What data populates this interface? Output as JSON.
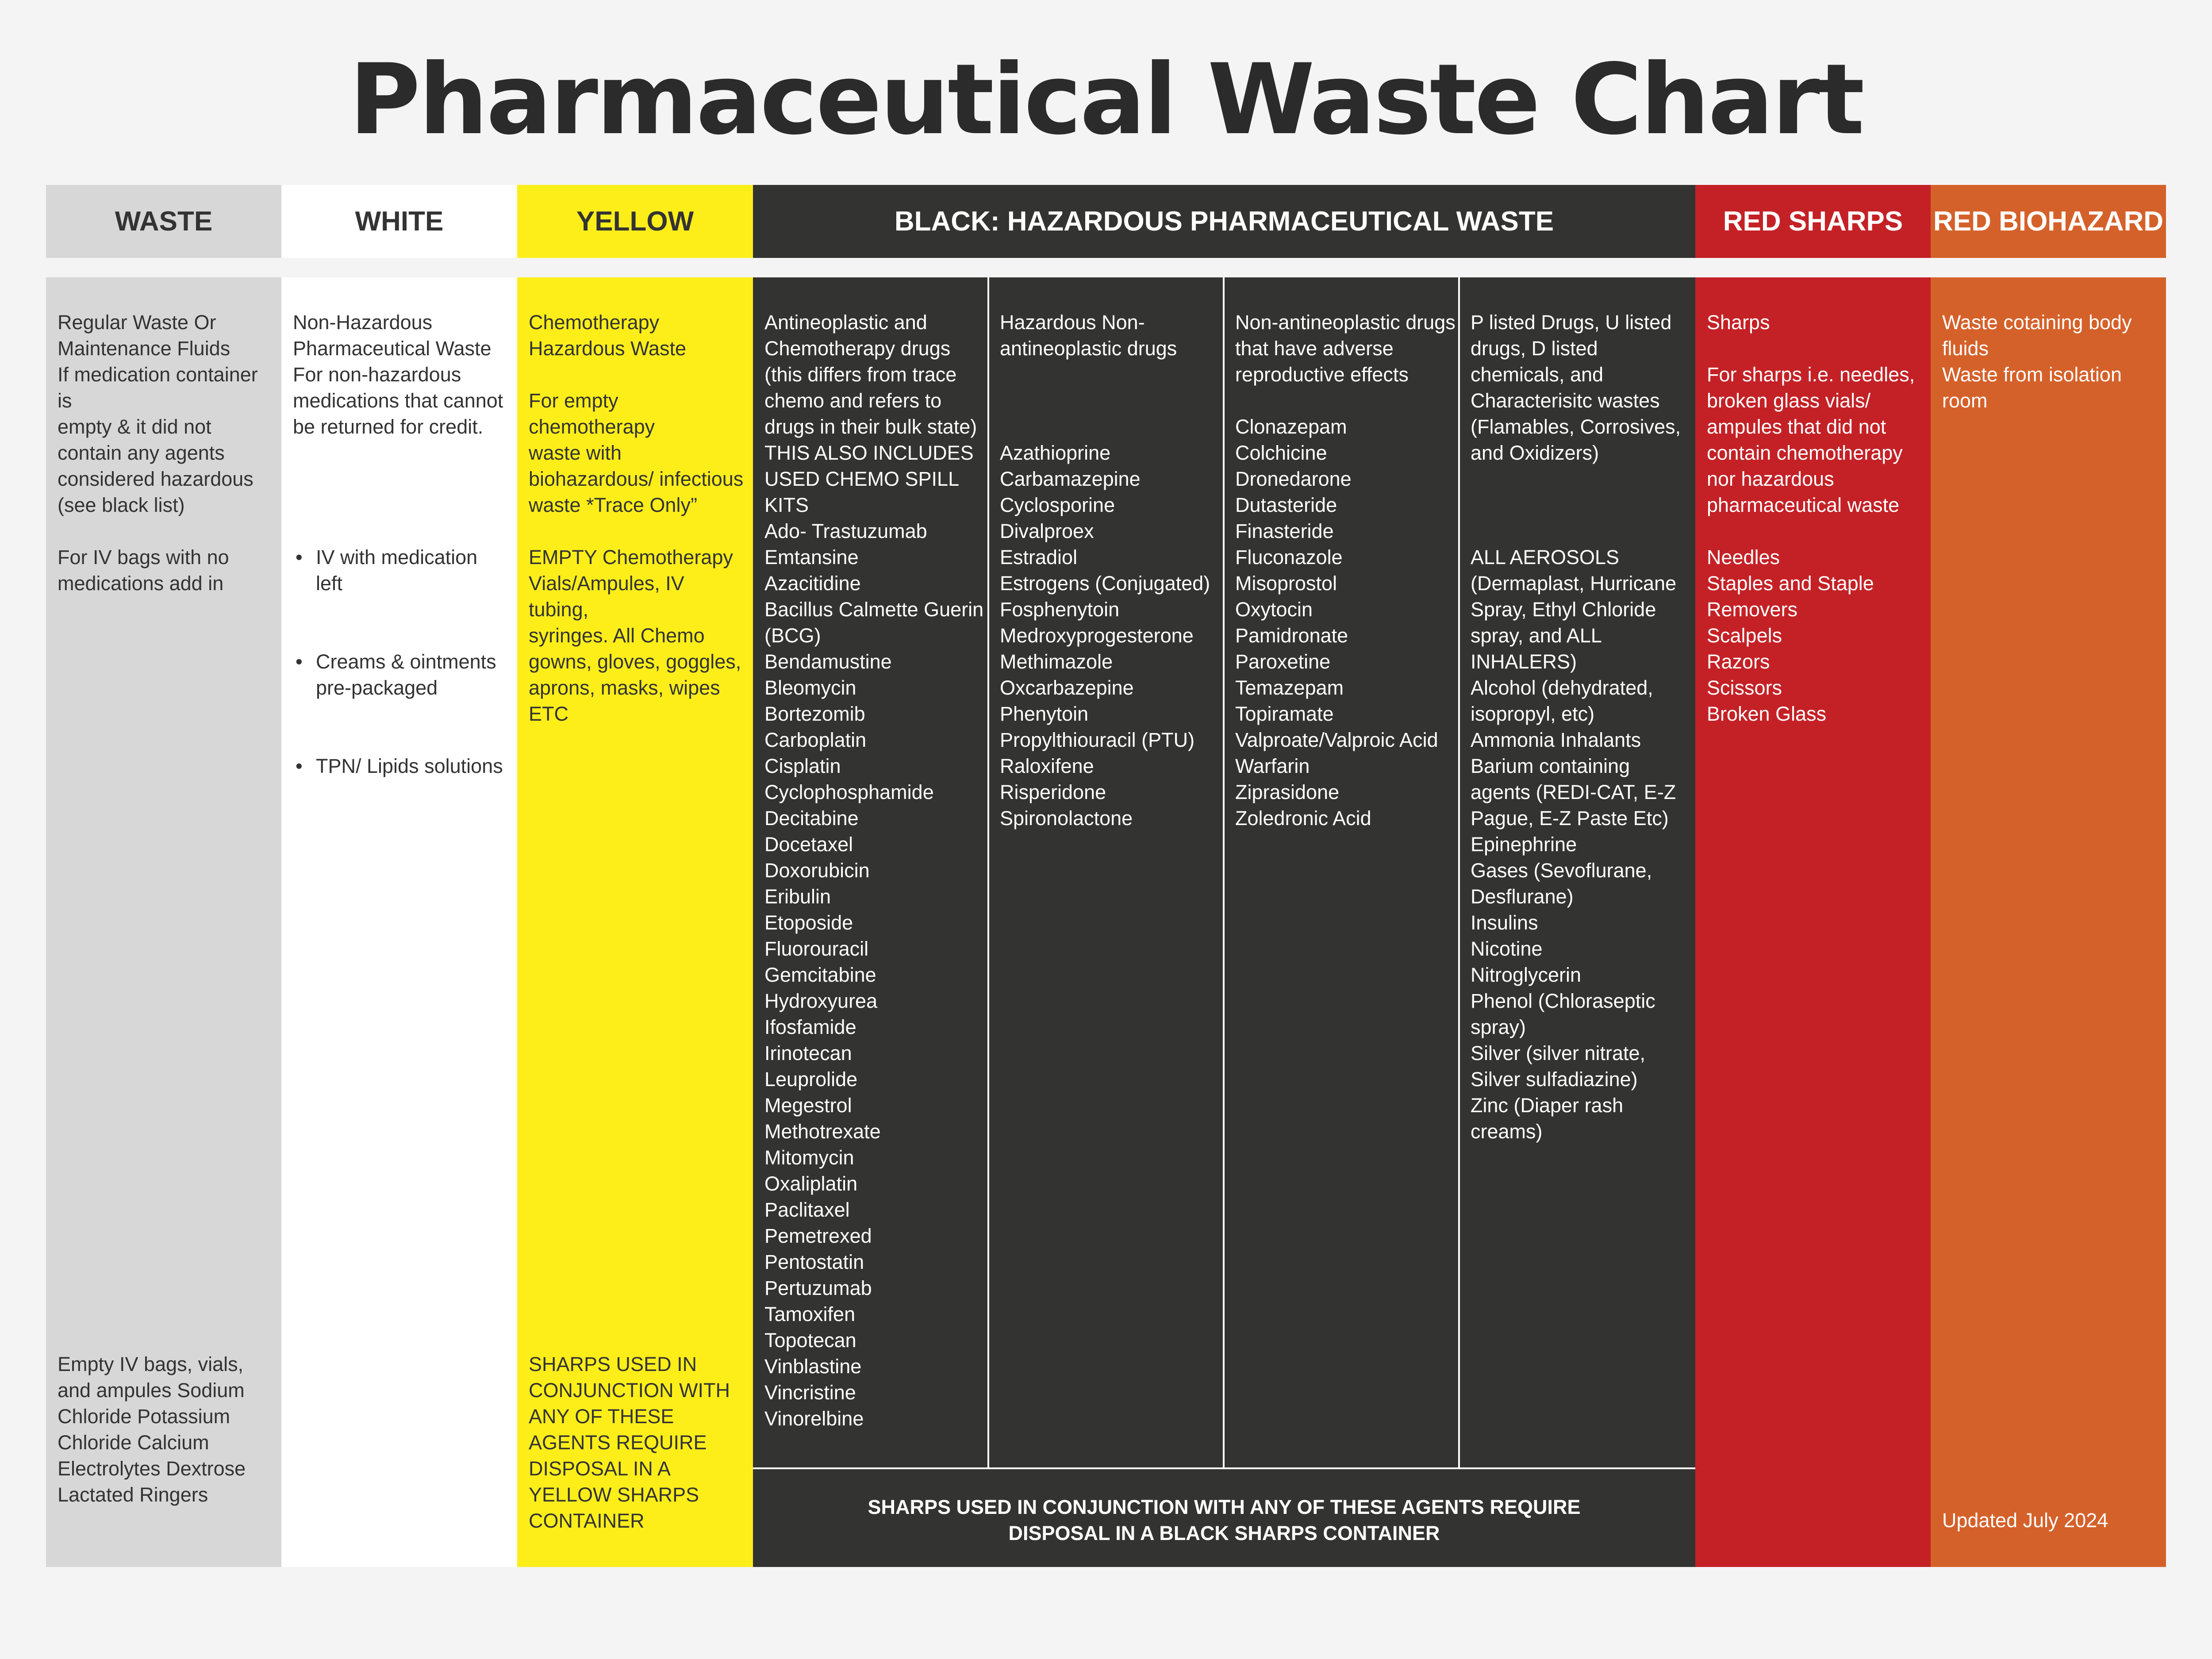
{
  "title": "Pharmaceutical Waste Chart",
  "colors": {
    "waste": "#d6d7d6",
    "white": "#ffffff",
    "yellow": "#fdee1a",
    "black": "#333332",
    "red_sharps": "#c42126",
    "red_biohazard": "#d5612a",
    "text_dark": "#333333"
  },
  "headers": {
    "waste": "WASTE",
    "white": "WHITE",
    "yellow": "YELLOW",
    "black": "BLACK: HAZARDOUS PHARMACEUTICAL WASTE",
    "red_sharps": "RED SHARPS",
    "red_biohazard": "RED BIOHAZARD"
  },
  "waste": {
    "top": "Regular Waste Or\nMaintenance Fluids\nIf medication container is\nempty & it did not\ncontain any agents\nconsidered hazardous\n(see black list)\n\nFor IV bags with no\nmedications add in",
    "bottom": "Empty IV bags, vials,\nand ampules Sodium\nChloride Potassium\nChloride Calcium\nElectrolytes Dextrose\nLactated Ringers"
  },
  "white": {
    "text": "Non-Hazardous\nPharmaceutical Waste\nFor non-hazardous\nmedications that cannot\nbe returned for credit.",
    "items": [
      "IV with medication left",
      "Creams & ointments\npre-packaged",
      "TPN/ Lipids solutions"
    ]
  },
  "yellow": {
    "top": "Chemotherapy\nHazardous Waste\n\nFor empty chemotherapy\nwaste with\nbiohazardous/ infectious\nwaste *Trace Only”\n\nEMPTY Chemotherapy\nVials/Ampules, IV tubing,\nsyringes. All Chemo\ngowns, gloves, goggles,\naprons, masks, wipes\nETC",
    "bottom": "SHARPS USED IN\nCONJUNCTION WITH\nANY OF THESE\nAGENTS REQUIRE\nDISPOSAL IN A\nYELLOW SHARPS\nCONTAINER"
  },
  "black": {
    "col1": "Antineoplastic and\nChemotherapy drugs\n(this differs from trace\nchemo and refers to\ndrugs in their bulk state)\nTHIS ALSO INCLUDES\nUSED CHEMO SPILL\nKITS\nAdo- Trastuzumab\nEmtansine\nAzacitidine\nBacillus Calmette Guerin\n(BCG)\nBendamustine\nBleomycin\nBortezomib\nCarboplatin\nCisplatin\nCyclophosphamide\nDecitabine\nDocetaxel\nDoxorubicin\nEribulin\nEtoposide\nFluorouracil\nGemcitabine\nHydroxyurea\nIfosfamide\nIrinotecan\nLeuprolide\nMegestrol\nMethotrexate\nMitomycin\nOxaliplatin\nPaclitaxel\nPemetrexed\nPentostatin\nPertuzumab\nTamoxifen\nTopotecan\nVinblastine\nVincristine\nVinorelbine",
    "col2": "Hazardous Non-\nantineoplastic drugs\n\n\n\nAzathioprine\nCarbamazepine\nCyclosporine\nDivalproex\nEstradiol\nEstrogens (Conjugated)\nFosphenytoin\nMedroxyprogesterone\nMethimazole\nOxcarbazepine\nPhenytoin\nPropylthiouracil (PTU)\nRaloxifene\nRisperidone\nSpironolactone",
    "col3": "Non-antineoplastic drugs\nthat have adverse\nreproductive effects\n\nClonazepam\nColchicine\nDronedarone\nDutasteride\nFinasteride\nFluconazole\nMisoprostol\nOxytocin\nPamidronate\nParoxetine\nTemazepam\nTopiramate\nValproate/Valproic Acid\nWarfarin\nZiprasidone\nZoledronic Acid",
    "col4": "P listed Drugs, U listed\ndrugs, D listed\nchemicals, and\nCharacterisitc wastes\n(Flamables, Corrosives,\nand Oxidizers)\n\n\n\nALL AEROSOLS\n(Dermaplast, Hurricane\nSpray, Ethyl Chloride\nspray, and ALL\nINHALERS)\nAlcohol (dehydrated,\nisopropyl, etc)\nAmmonia Inhalants\nBarium containing\nagents (REDI-CAT, E-Z\nPague, E-Z Paste Etc)\nEpinephrine\nGases (Sevoflurane,\nDesflurane)\nInsulins\nNicotine\nNitroglycerin\nPhenol (Chloraseptic\nspray)\nSilver (silver nitrate,\nSilver sulfadiazine)\nZinc (Diaper rash\ncreams)",
    "footer": "SHARPS USED IN CONJUNCTION WITH ANY OF THESE AGENTS REQUIRE\nDISPOSAL IN A BLACK SHARPS CONTAINER"
  },
  "red_sharps": {
    "text": "Sharps\n\nFor sharps i.e. needles,\nbroken glass vials/\nampules that did not\ncontain chemotherapy\nnor hazardous\npharmaceutical waste\n\nNeedles\nStaples and Staple\nRemovers\nScalpels\nRazors\nScissors\nBroken Glass"
  },
  "red_biohazard": {
    "text": "Waste cotaining body\nfluids\nWaste from isolation\nroom",
    "updated": "Updated July 2024"
  }
}
